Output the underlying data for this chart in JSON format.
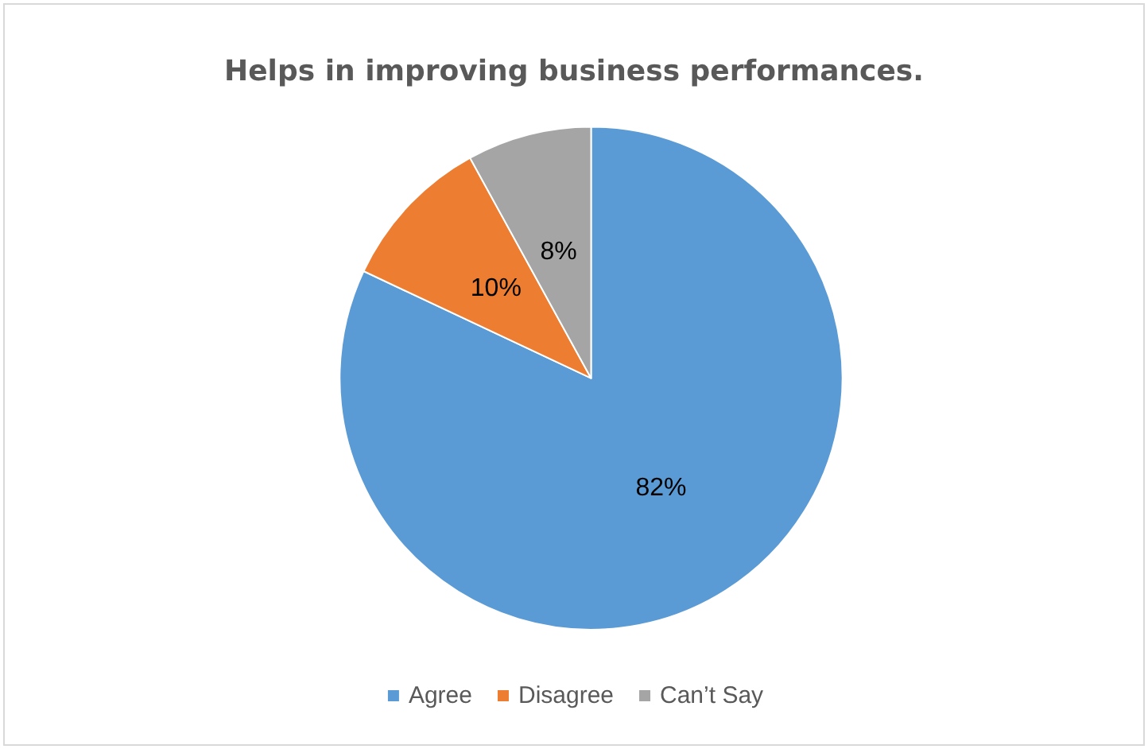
{
  "chart_data": {
    "type": "pie",
    "title": "Helps in improving business performances.",
    "categories": [
      "Agree",
      "Disagree",
      "Can’t Say"
    ],
    "values": [
      82,
      10,
      8
    ],
    "colors": [
      "#5b9bd5",
      "#ed7d31",
      "#a5a5a5"
    ],
    "value_labels": [
      "82%",
      "10%",
      "8%"
    ],
    "legend": "bottom"
  }
}
